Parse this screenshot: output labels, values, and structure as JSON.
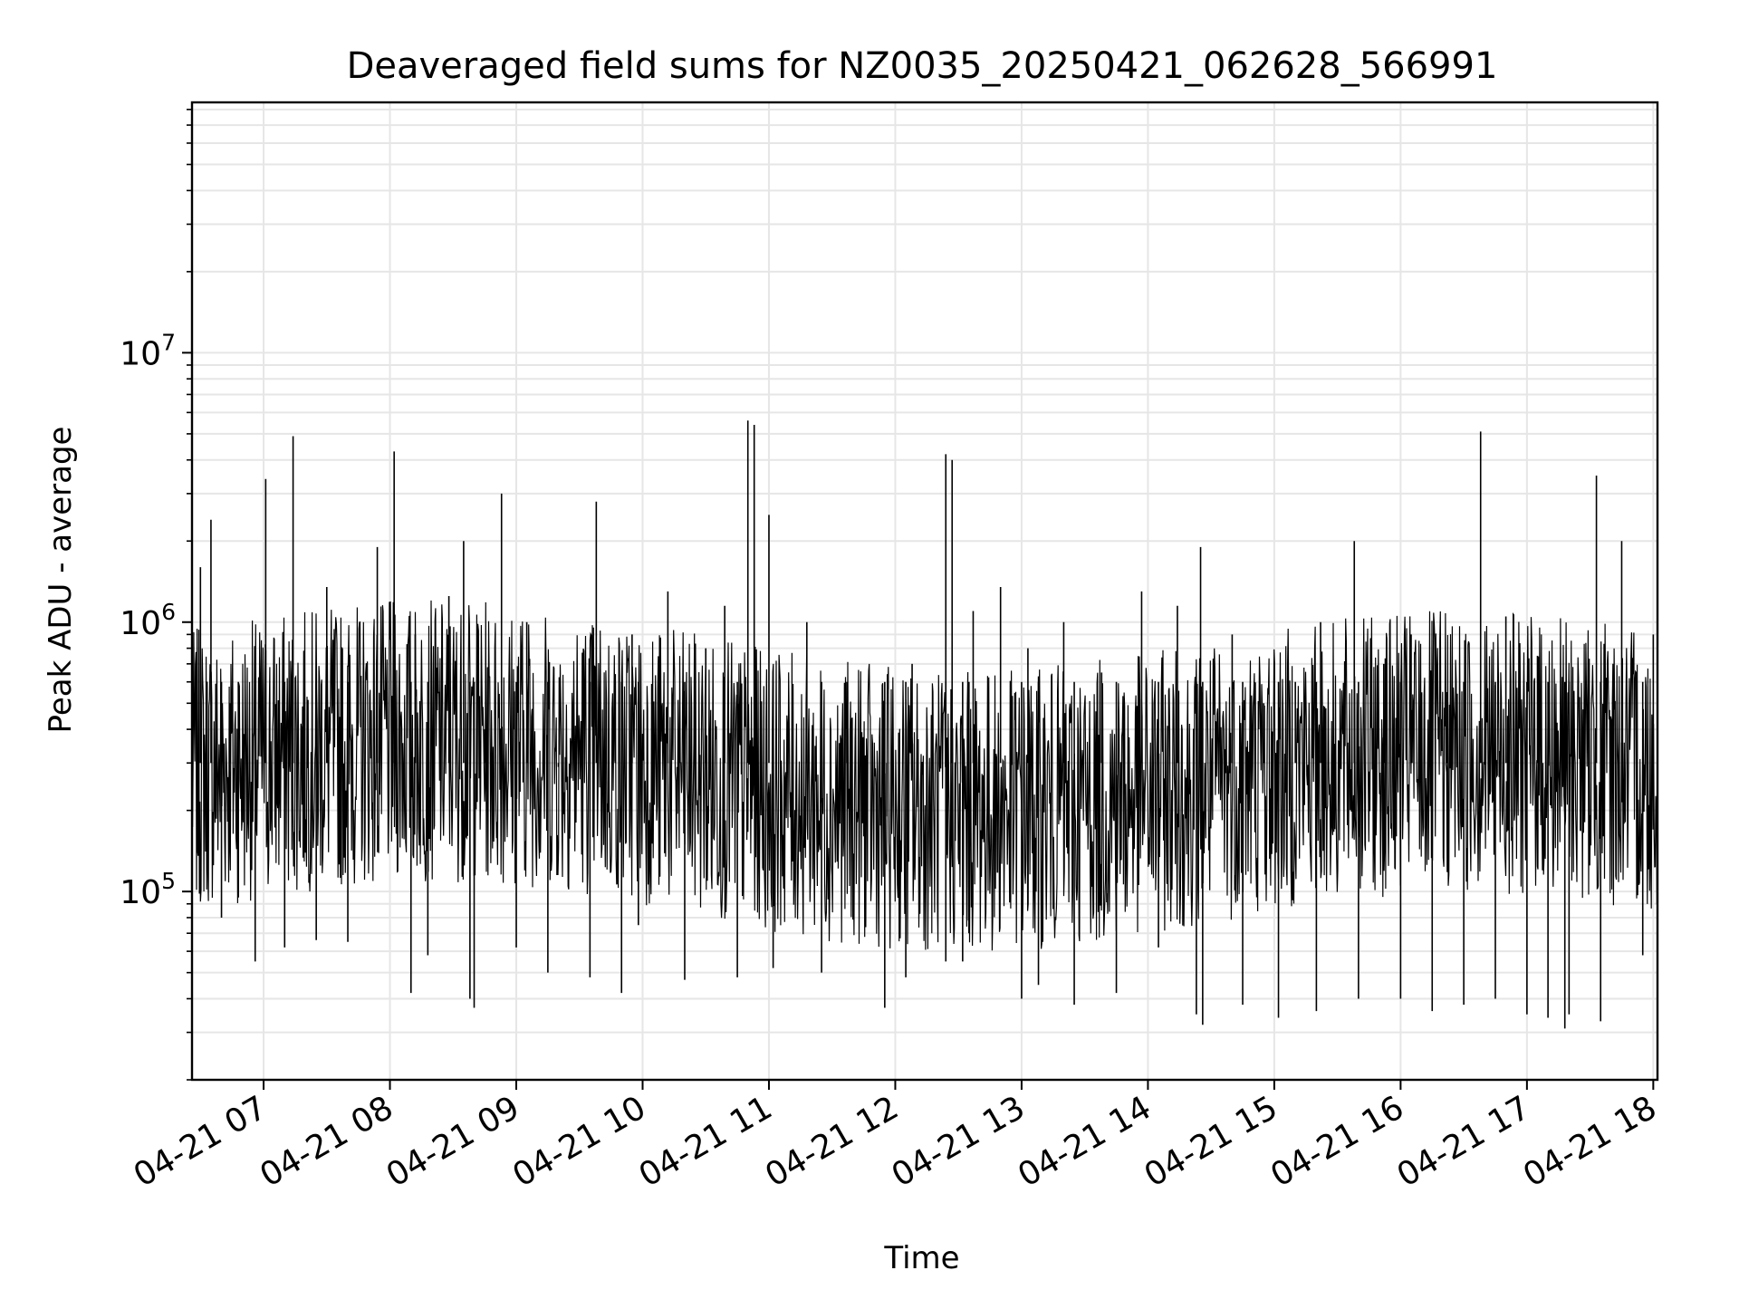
{
  "chart_data": {
    "type": "line",
    "title": "Deaveraged field sums for NZ0035_20250421_062628_566991",
    "xlabel": "Time",
    "ylabel": "Peak ADU - average",
    "x_tick_labels": [
      "04-21 07",
      "04-21 08",
      "04-21 09",
      "04-21 10",
      "04-21 11",
      "04-21 12",
      "04-21 13",
      "04-21 14",
      "04-21 15",
      "04-21 16",
      "04-21 17",
      "04-21 18"
    ],
    "x_ticks": [
      "2025-04-21 07:00",
      "2025-04-21 08:00",
      "2025-04-21 09:00",
      "2025-04-21 10:00",
      "2025-04-21 11:00",
      "2025-04-21 12:00",
      "2025-04-21 13:00",
      "2025-04-21 14:00",
      "2025-04-21 15:00",
      "2025-04-21 16:00",
      "2025-04-21 17:00",
      "2025-04-21 18:00"
    ],
    "xlim": [
      "2025-04-21 06:26",
      "2025-04-21 18:02"
    ],
    "y_scale": "log",
    "ylim": [
      20000,
      85000000
    ],
    "y_ticks": [
      100000,
      1000000,
      10000000
    ],
    "y_tick_labels": [
      {
        "base": "10",
        "exp": "5"
      },
      {
        "base": "10",
        "exp": "6"
      },
      {
        "base": "10",
        "exp": "7"
      }
    ],
    "grid": true,
    "line_color": "#000000",
    "grid_color": "#e6e6e6",
    "series": [
      {
        "x": [
          "2025-04-21 06:30",
          "2025-04-21 06:35",
          "2025-04-21 06:44",
          "2025-04-21 06:52",
          "2025-04-21 07:01",
          "2025-04-21 07:14",
          "2025-04-21 07:30",
          "2025-04-21 07:45",
          "2025-04-21 07:54",
          "2025-04-21 08:02",
          "2025-04-21 08:12",
          "2025-04-21 08:28",
          "2025-04-21 08:35",
          "2025-04-21 08:45",
          "2025-04-21 08:53",
          "2025-04-21 09:05",
          "2025-04-21 09:20",
          "2025-04-21 09:38",
          "2025-04-21 09:47",
          "2025-04-21 09:55",
          "2025-04-21 10:12",
          "2025-04-21 10:30",
          "2025-04-21 10:39",
          "2025-04-21 10:50",
          "2025-04-21 10:53",
          "2025-04-21 11:00",
          "2025-04-21 11:18",
          "2025-04-21 11:37",
          "2025-04-21 11:56",
          "2025-04-21 12:08",
          "2025-04-21 12:24",
          "2025-04-21 12:27",
          "2025-04-21 12:37",
          "2025-04-21 12:50",
          "2025-04-21 13:03",
          "2025-04-21 13:20",
          "2025-04-21 13:38",
          "2025-04-21 13:57",
          "2025-04-21 14:14",
          "2025-04-21 14:25",
          "2025-04-21 14:40",
          "2025-04-21 14:55",
          "2025-04-21 15:10",
          "2025-04-21 15:22",
          "2025-04-21 15:38",
          "2025-04-21 15:52",
          "2025-04-21 16:05",
          "2025-04-21 16:22",
          "2025-04-21 16:38",
          "2025-04-21 16:50",
          "2025-04-21 17:05",
          "2025-04-21 17:18",
          "2025-04-21 17:33",
          "2025-04-21 17:45",
          "2025-04-21 18:00"
        ],
        "y": [
          1600000,
          2400000,
          500000,
          250000,
          3400000,
          4900000,
          1350000,
          300000,
          1900000,
          4300000,
          900000,
          1250000,
          2000000,
          400000,
          3000000,
          1000000,
          290000,
          2800000,
          600000,
          900000,
          1300000,
          800000,
          1150000,
          5600000,
          5400000,
          2500000,
          1000000,
          600000,
          190000,
          700000,
          4200000,
          4000000,
          1100000,
          1350000,
          800000,
          1000000,
          650000,
          1300000,
          1150000,
          1900000,
          900000,
          500000,
          600000,
          1000000,
          2000000,
          700000,
          900000,
          550000,
          5100000,
          1050000,
          750000,
          380000,
          3500000,
          2000000,
          900000
        ]
      },
      {
        "x": [
          "2025-04-21 06:33",
          "2025-04-21 06:40",
          "2025-04-21 06:48",
          "2025-04-21 06:56",
          "2025-04-21 07:10",
          "2025-04-21 07:25",
          "2025-04-21 07:40",
          "2025-04-21 08:10",
          "2025-04-21 08:18",
          "2025-04-21 08:38",
          "2025-04-21 08:40",
          "2025-04-21 09:00",
          "2025-04-21 09:15",
          "2025-04-21 09:35",
          "2025-04-21 09:50",
          "2025-04-21 09:58",
          "2025-04-21 10:20",
          "2025-04-21 10:45",
          "2025-04-21 11:02",
          "2025-04-21 11:25",
          "2025-04-21 11:55",
          "2025-04-21 12:05",
          "2025-04-21 12:24",
          "2025-04-21 12:32",
          "2025-04-21 12:35",
          "2025-04-21 13:00",
          "2025-04-21 13:08",
          "2025-04-21 13:25",
          "2025-04-21 13:45",
          "2025-04-21 14:05",
          "2025-04-21 14:23",
          "2025-04-21 14:26",
          "2025-04-21 14:45",
          "2025-04-21 15:02",
          "2025-04-21 15:20",
          "2025-04-21 15:40",
          "2025-04-21 16:00",
          "2025-04-21 16:15",
          "2025-04-21 16:30",
          "2025-04-21 16:45",
          "2025-04-21 17:00",
          "2025-04-21 17:10",
          "2025-04-21 17:18",
          "2025-04-21 17:20",
          "2025-04-21 17:35",
          "2025-04-21 17:55"
        ],
        "y": [
          250000,
          80000,
          95000,
          55000,
          62000,
          66000,
          65000,
          42000,
          58000,
          40000,
          37000,
          62000,
          50000,
          48000,
          42000,
          75000,
          47000,
          48000,
          52000,
          50000,
          37000,
          48000,
          55000,
          55000,
          70000,
          40000,
          45000,
          38000,
          42000,
          62000,
          35000,
          32000,
          38000,
          34000,
          36000,
          40000,
          40000,
          36000,
          38000,
          40000,
          35000,
          34000,
          31000,
          35000,
          33000,
          58000
        ]
      }
    ]
  }
}
